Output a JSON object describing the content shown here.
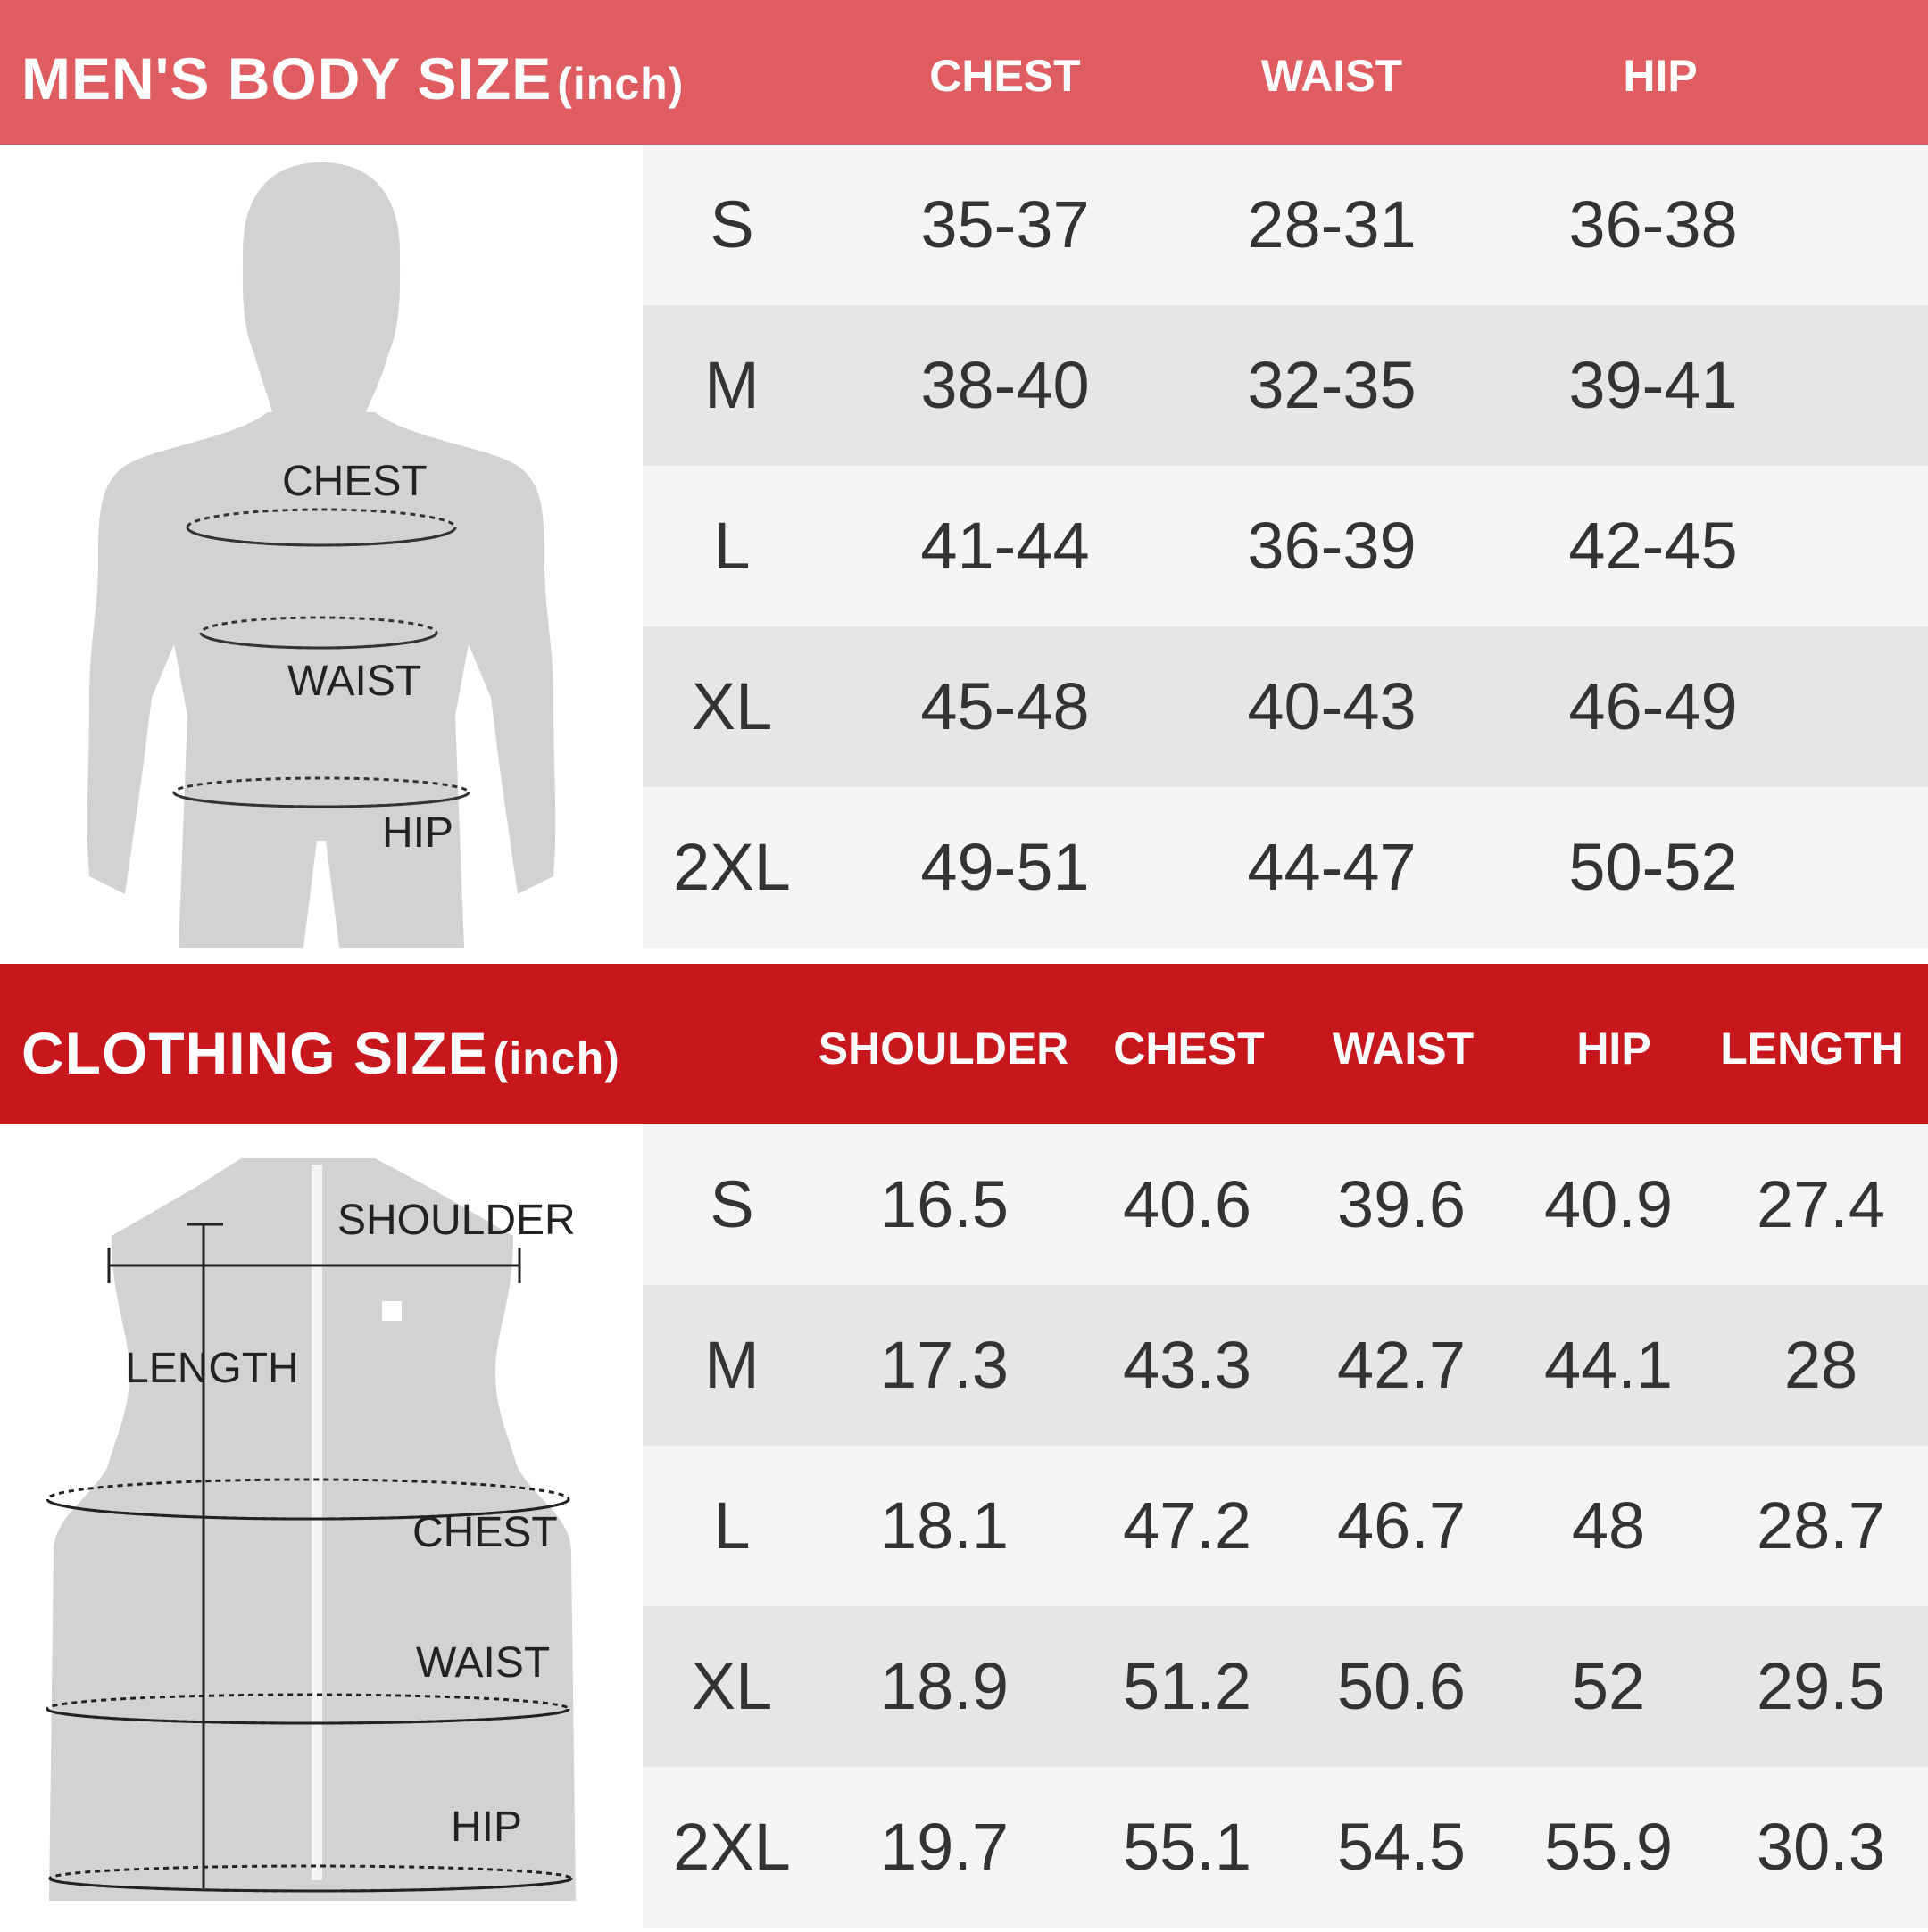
{
  "body_size": {
    "title": "MEN'S BODY SIZE",
    "unit": "(inch)",
    "columns": [
      "CHEST",
      "WAIST",
      "HIP"
    ],
    "rows": [
      {
        "size": "S",
        "values": [
          "35-37",
          "28-31",
          "36-38"
        ]
      },
      {
        "size": "M",
        "values": [
          "38-40",
          "32-35",
          "39-41"
        ]
      },
      {
        "size": "L",
        "values": [
          "41-44",
          "36-39",
          "42-45"
        ]
      },
      {
        "size": "XL",
        "values": [
          "45-48",
          "40-43",
          "46-49"
        ]
      },
      {
        "size": "2XL",
        "values": [
          "49-51",
          "44-47",
          "50-52"
        ]
      }
    ],
    "figure_labels": {
      "chest": "CHEST",
      "waist": "WAIST",
      "hip": "HIP"
    }
  },
  "clothing_size": {
    "title": "CLOTHING SIZE",
    "unit": "(inch)",
    "columns": [
      "SHOULDER",
      "CHEST",
      "WAIST",
      "HIP",
      "LENGTH"
    ],
    "rows": [
      {
        "size": "S",
        "values": [
          "16.5",
          "40.6",
          "39.6",
          "40.9",
          "27.4"
        ]
      },
      {
        "size": "M",
        "values": [
          "17.3",
          "43.3",
          "42.7",
          "44.1",
          "28"
        ]
      },
      {
        "size": "L",
        "values": [
          "18.1",
          "47.2",
          "46.7",
          "48",
          "28.7"
        ]
      },
      {
        "size": "XL",
        "values": [
          "18.9",
          "51.2",
          "50.6",
          "52",
          "29.5"
        ]
      },
      {
        "size": "2XL",
        "values": [
          "19.7",
          "55.1",
          "54.5",
          "55.9",
          "30.3"
        ]
      }
    ],
    "figure_labels": {
      "shoulder": "SHOULDER",
      "length": "LENGTH",
      "chest": "CHEST",
      "waist": "WAIST",
      "hip": "HIP"
    }
  },
  "colors": {
    "body_header": "#df5c61",
    "clothing_header": "#c8161d",
    "row_light": "#f6f4f4",
    "row_dark": "#e6e6e6",
    "silhouette": "#d3d2d3"
  },
  "icons": [
    "body-silhouette-icon",
    "vest-silhouette-icon"
  ]
}
